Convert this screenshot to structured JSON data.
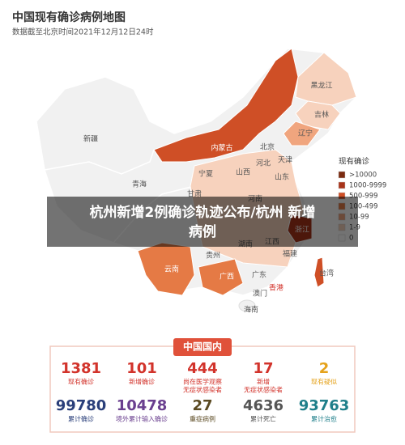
{
  "header": {
    "title": "中国现有确诊病例地图",
    "subtitle": "数据截至北京时间2021年12月12日24时"
  },
  "map": {
    "provinces": [
      "新疆",
      "青海",
      "甘肃",
      "宁夏",
      "内蒙古",
      "黑龙江",
      "吉林",
      "辽宁",
      "北京",
      "天津",
      "河北",
      "山西",
      "山东",
      "河南",
      "江西",
      "湖南",
      "浙江",
      "福建",
      "贵州",
      "云南",
      "广西",
      "广东",
      "香港",
      "澳门",
      "海南",
      "台湾"
    ]
  },
  "legend": {
    "title": "现有确诊",
    "items": [
      {
        "label": ">10000",
        "color": "#7a2a10"
      },
      {
        "label": "1000-9999",
        "color": "#a8341a"
      },
      {
        "label": "500-999",
        "color": "#cf4f26"
      },
      {
        "label": "100-499",
        "color": "#e57a45"
      },
      {
        "label": "10-99",
        "color": "#f0a57e"
      },
      {
        "label": "1-9",
        "color": "#f7d2bd"
      },
      {
        "label": "0",
        "color": "#ffffff"
      }
    ]
  },
  "headline": {
    "lines": [
      "杭州新增2例确诊轨迹公布/杭州 新增",
      "病例"
    ]
  },
  "panel": {
    "title": "中国国内",
    "stats": [
      {
        "value": "1381",
        "label": [
          "现有确诊"
        ],
        "color": "#d2332b"
      },
      {
        "value": "101",
        "label": [
          "新增确诊"
        ],
        "color": "#d2332b"
      },
      {
        "value": "444",
        "label": [
          "尚在医学观察",
          "无症状感染者"
        ],
        "color": "#d2332b"
      },
      {
        "value": "17",
        "label": [
          "新增",
          "无症状感染者"
        ],
        "color": "#d2332b"
      },
      {
        "value": "2",
        "label": [
          "现有疑似"
        ],
        "color": "#e5a21b"
      },
      {
        "value": "99780",
        "label": [
          "累计确诊"
        ],
        "color": "#2a3f7a"
      },
      {
        "value": "10478",
        "label": [
          "境外累计输入确诊"
        ],
        "color": "#6a3f8f"
      },
      {
        "value": "27",
        "label": [
          "重症病例"
        ],
        "color": "#5b4a22"
      },
      {
        "value": "4636",
        "label": [
          "累计死亡"
        ],
        "color": "#555555"
      },
      {
        "value": "93763",
        "label": [
          "累计治愈"
        ],
        "color": "#1f7f8a"
      }
    ]
  }
}
